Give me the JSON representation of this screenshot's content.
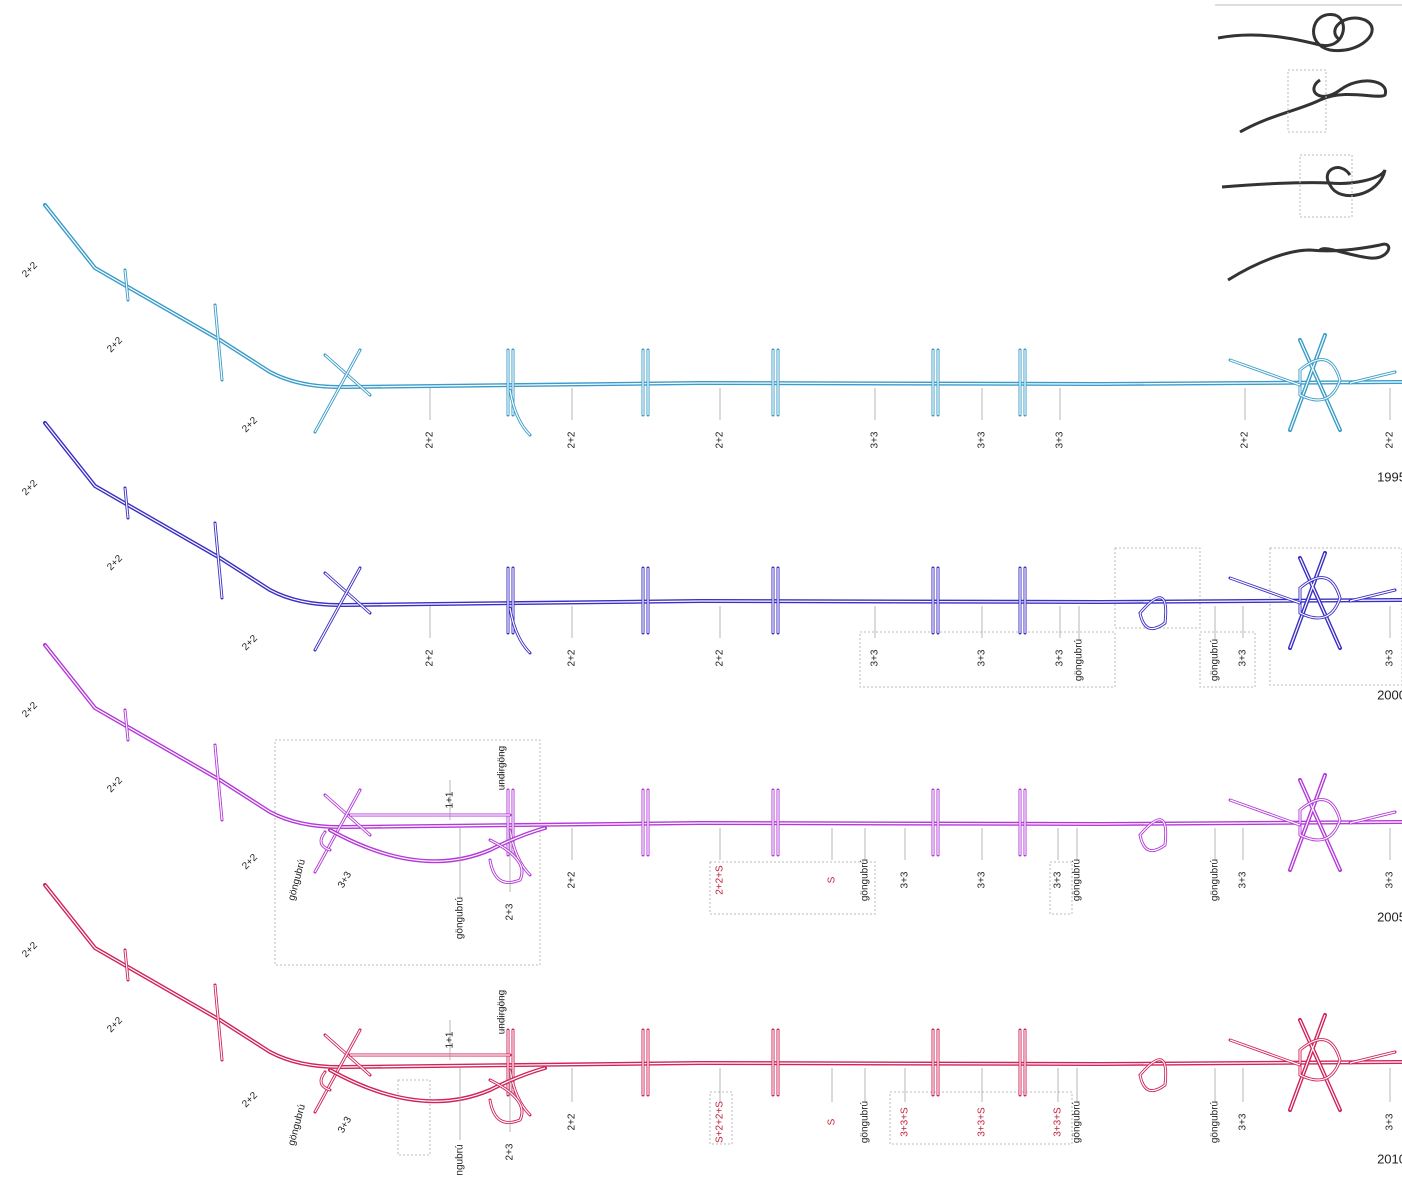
{
  "rows": [
    {
      "year": "1995",
      "color": "#3a9cc8",
      "labels": [
        "2+2",
        "2+2",
        "2+2",
        "2+2",
        "2+2",
        "2+2",
        "3+3",
        "3+3",
        "3+3",
        "2+2",
        "2+2"
      ]
    },
    {
      "year": "2000",
      "color": "#3b2fc4",
      "labels": [
        "2+2",
        "2+2",
        "2+2",
        "2+2",
        "2+2",
        "2+2",
        "3+3",
        "3+3",
        "3+3",
        "göngubrú",
        "göngubrú",
        "3+3",
        "3+3"
      ]
    },
    {
      "year": "2005",
      "color": "#b43ad8",
      "labels": [
        "2+2",
        "2+2",
        "2+2",
        "göngubrú",
        "3+3",
        "1+1",
        "undirgöng",
        "göngubrú",
        "2+3",
        "2+2",
        "2+2+S",
        "S",
        "göngubrú",
        "3+3",
        "3+3",
        "3+3",
        "göngubrú",
        "göngubrú",
        "3+3",
        "3+3"
      ]
    },
    {
      "year": "2010",
      "color": "#d0245a",
      "labels": [
        "2+2",
        "2+2",
        "2+2",
        "göngubrú",
        "3+3",
        "1+1",
        "undirgöng",
        "ngubrú",
        "2+3",
        "2+2",
        "S+2+2+S",
        "S",
        "göngubrú",
        "3+3+S",
        "3+3+S",
        "3+3+S",
        "göngubrú",
        "göngubrú",
        "3+3",
        "3+3"
      ]
    }
  ]
}
